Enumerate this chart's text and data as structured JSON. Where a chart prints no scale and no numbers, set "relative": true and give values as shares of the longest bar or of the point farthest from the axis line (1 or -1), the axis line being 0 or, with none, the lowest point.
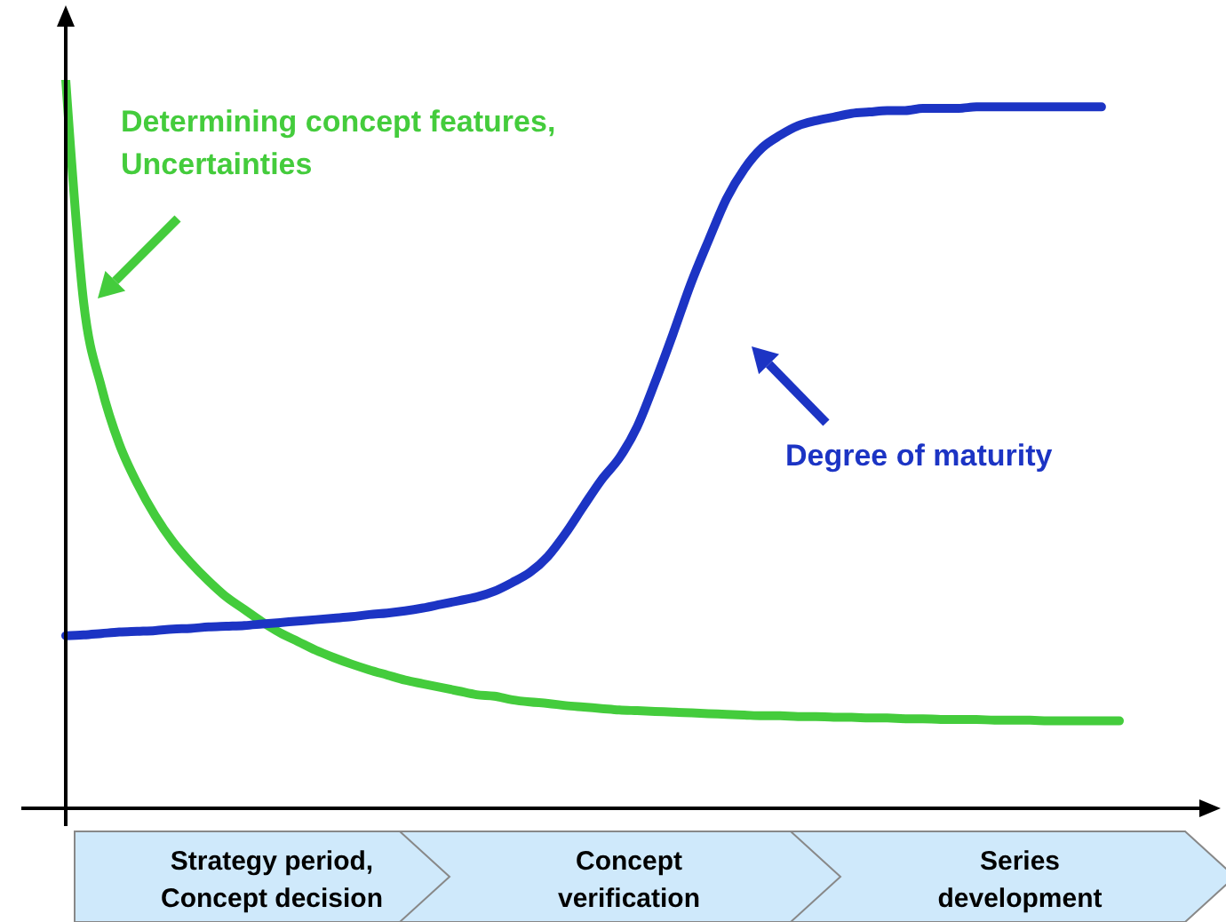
{
  "chart_data": {
    "type": "line",
    "relative": true,
    "marker": "none",
    "line_style": "solid",
    "categories": [
      null,
      null,
      null,
      null,
      null,
      null,
      null,
      null,
      null,
      null,
      null,
      null,
      null,
      null,
      null,
      null,
      null,
      null,
      null,
      null,
      null,
      null,
      null,
      null,
      null,
      null,
      null,
      null,
      null,
      null,
      null,
      null,
      null,
      null,
      null,
      null,
      null,
      null,
      null,
      null,
      null,
      null,
      null,
      null,
      null,
      null,
      null,
      null,
      null,
      null,
      null,
      null,
      null,
      null,
      null,
      null,
      null,
      null,
      null,
      null
    ],
    "series": [
      {
        "name": "Determining concept features, Uncertainties",
        "color": "#44cc3c",
        "values": [
          1,
          0.695,
          0.578,
          0.5,
          0.446,
          0.402,
          0.366,
          0.337,
          0.312,
          0.29,
          0.273,
          0.256,
          0.241,
          0.229,
          0.217,
          0.207,
          0.198,
          0.19,
          0.183,
          0.176,
          0.171,
          0.166,
          0.161,
          0.156,
          0.154,
          0.149,
          0.146,
          0.144,
          0.141,
          0.139,
          0.137,
          0.135,
          0.134,
          0.133,
          0.132,
          0.131,
          0.13,
          0.129,
          0.128,
          0.127,
          0.127,
          0.126,
          0.126,
          0.125,
          0.125,
          0.124,
          0.124,
          0.123,
          0.123,
          0.122,
          0.122,
          0.122,
          0.121,
          0.121,
          0.121,
          0.12,
          0.12,
          0.12,
          0.12,
          0.12
        ]
      },
      {
        "name": "Degree of maturity",
        "color": "#1c34c4",
        "values": [
          0.237,
          0.238,
          0.24,
          0.242,
          0.243,
          0.244,
          0.246,
          0.247,
          0.249,
          0.25,
          0.251,
          0.253,
          0.255,
          0.257,
          0.259,
          0.261,
          0.263,
          0.266,
          0.268,
          0.271,
          0.275,
          0.28,
          0.285,
          0.29,
          0.298,
          0.31,
          0.324,
          0.346,
          0.378,
          0.415,
          0.451,
          0.481,
          0.524,
          0.585,
          0.651,
          0.72,
          0.78,
          0.837,
          0.878,
          0.907,
          0.924,
          0.937,
          0.944,
          0.949,
          0.954,
          0.956,
          0.958,
          0.958,
          0.961,
          0.961,
          0.961,
          0.963,
          0.963,
          0.963,
          0.963,
          0.963,
          0.963,
          0.963,
          0.963,
          null
        ]
      }
    ],
    "annotations": [
      "Strategy period, Concept decision",
      "Concept verification",
      "Series development"
    ]
  }
}
